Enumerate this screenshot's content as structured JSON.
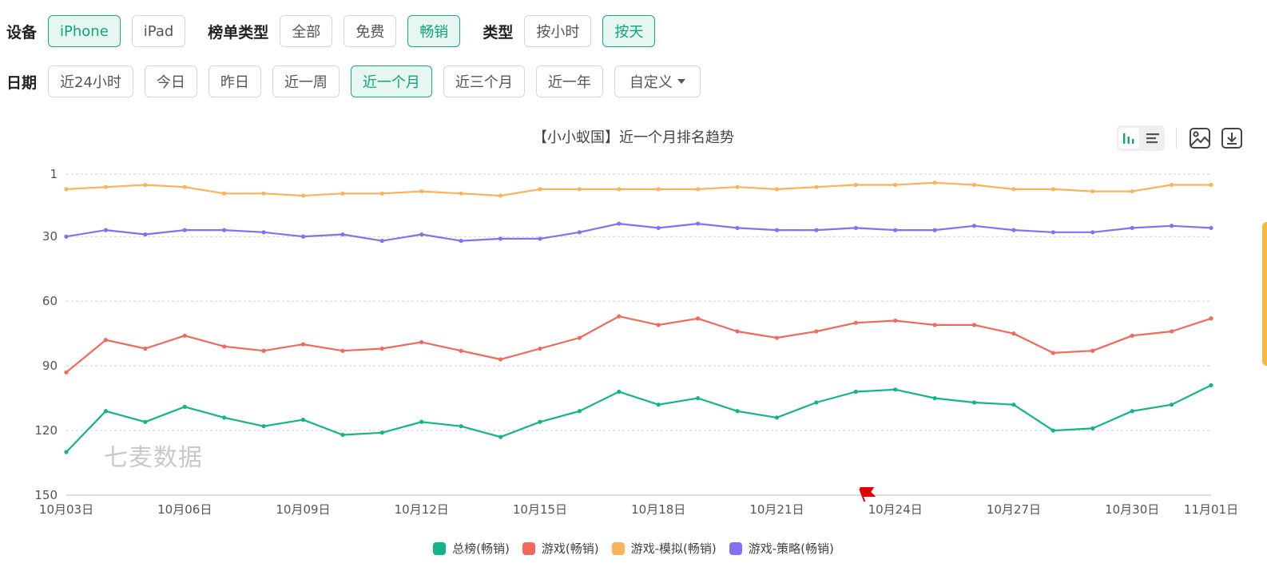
{
  "filters": {
    "device": {
      "label": "设备",
      "options": [
        "iPhone",
        "iPad"
      ],
      "selected": "iPhone"
    },
    "list_type": {
      "label": "榜单类型",
      "options": [
        "全部",
        "免费",
        "畅销"
      ],
      "selected": "畅销"
    },
    "type": {
      "label": "类型",
      "options": [
        "按小时",
        "按天"
      ],
      "selected": "按天"
    },
    "date": {
      "label": "日期",
      "options": [
        "近24小时",
        "今日",
        "昨日",
        "近一周",
        "近一个月",
        "近三个月",
        "近一年"
      ],
      "selected": "近一个月",
      "custom_label": "自定义"
    }
  },
  "toolbox": {
    "icons": [
      "bar-chart-icon",
      "list-icon",
      "image-icon",
      "download-icon"
    ]
  },
  "watermark": "七麦数据",
  "colors": {
    "accent": "#12a37b",
    "flag": "#e00000"
  },
  "chart_data": {
    "type": "line",
    "title": "【小小蚁国】近一个月排名趋势",
    "xlabel": "",
    "ylabel": "",
    "y_inverted": true,
    "ylim": [
      1,
      150
    ],
    "y_ticks": [
      1,
      30,
      60,
      90,
      120,
      150
    ],
    "grid": true,
    "legend_position": "bottom",
    "x_tick_labels": [
      "10月03日",
      "10月06日",
      "10月09日",
      "10月12日",
      "10月15日",
      "10月18日",
      "10月21日",
      "10月24日",
      "10月27日",
      "10月30日",
      "11月01日"
    ],
    "x": [
      "10月03日",
      "10月04日",
      "10月05日",
      "10月06日",
      "10月07日",
      "10月08日",
      "10月09日",
      "10月10日",
      "10月11日",
      "10月12日",
      "10月13日",
      "10月14日",
      "10月15日",
      "10月16日",
      "10月17日",
      "10月18日",
      "10月19日",
      "10月20日",
      "10月21日",
      "10月22日",
      "10月23日",
      "10月24日",
      "10月25日",
      "10月26日",
      "10月27日",
      "10月28日",
      "10月29日",
      "10月30日",
      "10月31日",
      "11月01日"
    ],
    "flag_marker": "10月23日",
    "series": [
      {
        "name": "总榜(畅销)",
        "color": "#12b58a",
        "values": [
          130,
          111,
          116,
          109,
          114,
          118,
          115,
          122,
          121,
          116,
          118,
          123,
          116,
          111,
          102,
          108,
          105,
          111,
          114,
          107,
          102,
          101,
          105,
          107,
          108,
          120,
          119,
          111,
          108,
          99
        ]
      },
      {
        "name": "游戏(畅销)",
        "color": "#f2695c",
        "values": [
          93,
          78,
          82,
          76,
          81,
          83,
          80,
          83,
          82,
          79,
          83,
          87,
          82,
          77,
          67,
          71,
          68,
          74,
          77,
          74,
          70,
          69,
          71,
          71,
          75,
          84,
          83,
          76,
          74,
          68
        ]
      },
      {
        "name": "游戏-模拟(畅销)",
        "color": "#fbb25a",
        "values": [
          8,
          7,
          6,
          7,
          10,
          10,
          11,
          10,
          10,
          9,
          10,
          11,
          8,
          8,
          8,
          8,
          8,
          7,
          8,
          7,
          6,
          6,
          5,
          6,
          8,
          8,
          9,
          9,
          6,
          6
        ]
      },
      {
        "name": "游戏-策略(畅销)",
        "color": "#8470f4",
        "values": [
          30,
          27,
          29,
          27,
          27,
          28,
          30,
          29,
          32,
          29,
          32,
          31,
          31,
          28,
          24,
          26,
          24,
          26,
          27,
          27,
          26,
          27,
          27,
          25,
          27,
          28,
          28,
          26,
          25,
          26
        ]
      }
    ]
  }
}
